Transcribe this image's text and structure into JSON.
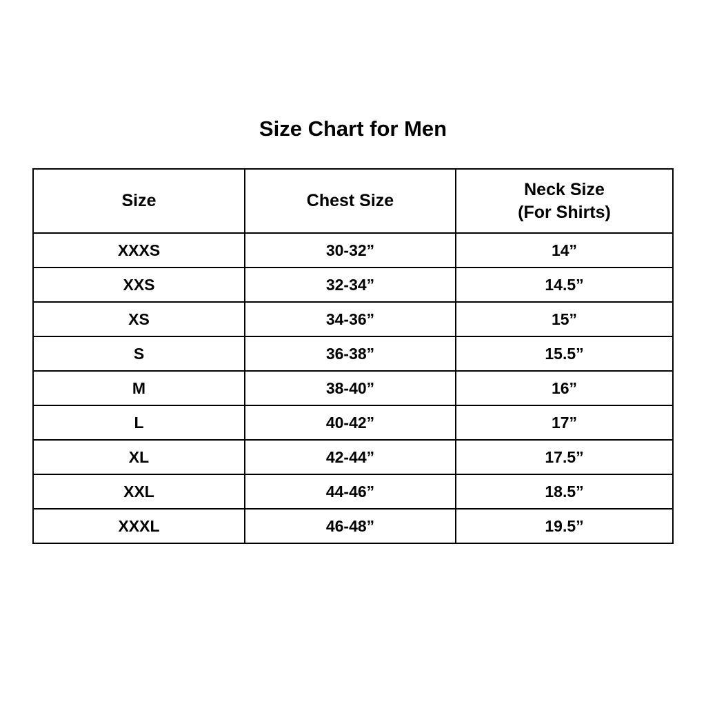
{
  "title": "Size Chart for Men",
  "colors": {
    "background": "#ffffff",
    "border": "#000000",
    "text": "#000000"
  },
  "chart_data": {
    "type": "table",
    "title": "Size Chart for Men",
    "columns": [
      {
        "label": "Size",
        "sublabel": ""
      },
      {
        "label": "Chest Size",
        "sublabel": ""
      },
      {
        "label": "Neck Size",
        "sublabel": "(For Shirts)"
      }
    ],
    "rows": [
      {
        "size": "XXXS",
        "chest": "30-32”",
        "neck": "14”"
      },
      {
        "size": "XXS",
        "chest": "32-34”",
        "neck": "14.5”"
      },
      {
        "size": "XS",
        "chest": "34-36”",
        "neck": "15”"
      },
      {
        "size": "S",
        "chest": "36-38”",
        "neck": "15.5”"
      },
      {
        "size": "M",
        "chest": "38-40”",
        "neck": "16”"
      },
      {
        "size": "L",
        "chest": "40-42”",
        "neck": "17”"
      },
      {
        "size": "XL",
        "chest": "42-44”",
        "neck": "17.5”"
      },
      {
        "size": "XXL",
        "chest": "44-46”",
        "neck": "18.5”"
      },
      {
        "size": "XXXL",
        "chest": "46-48”",
        "neck": "19.5”"
      }
    ]
  }
}
